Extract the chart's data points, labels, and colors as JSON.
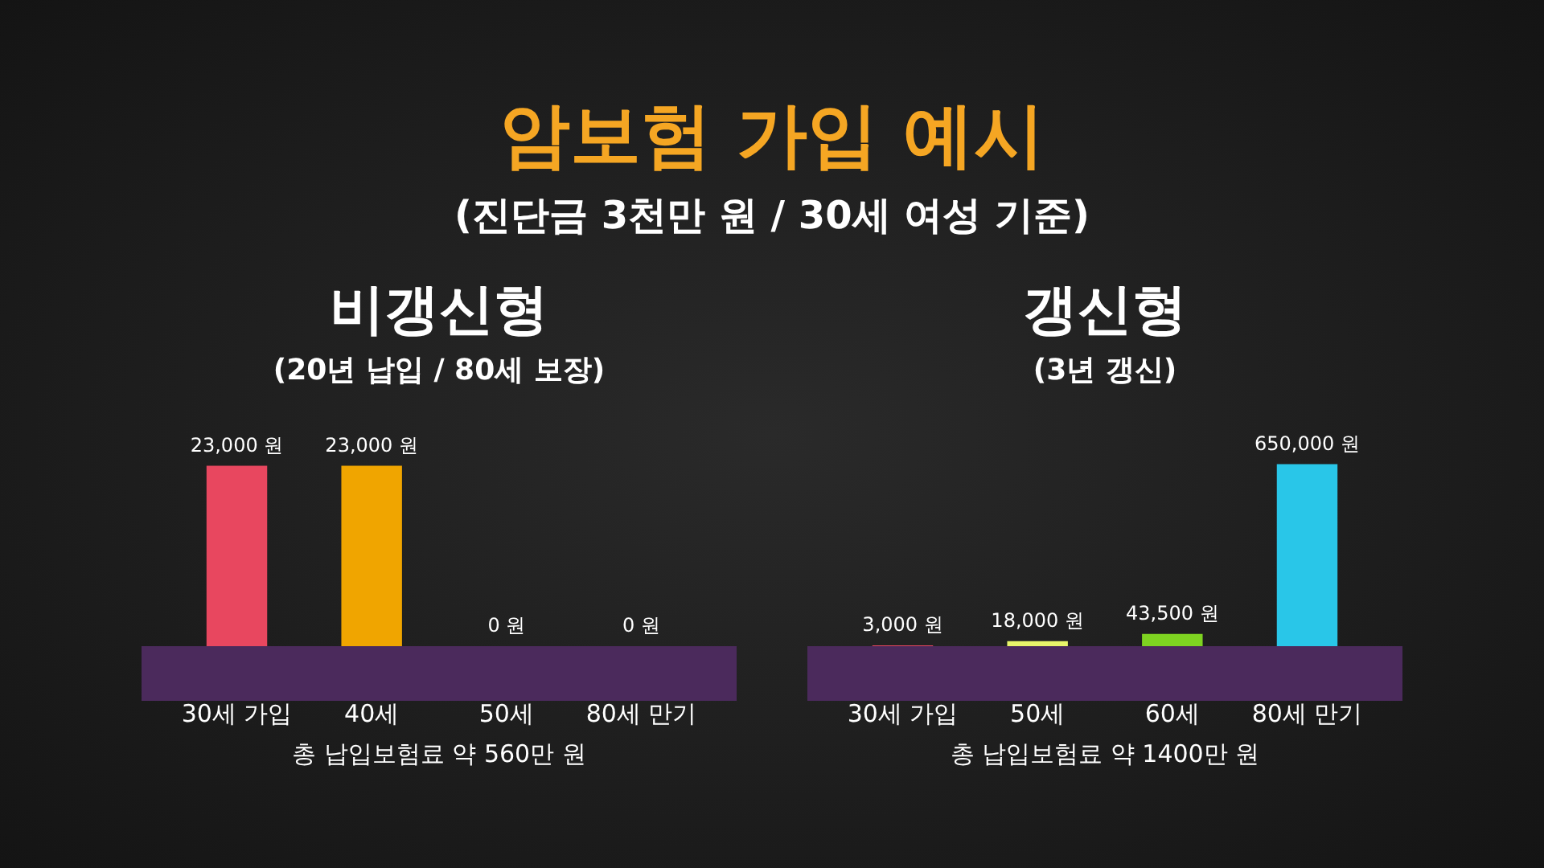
{
  "chart_data": [
    {
      "type": "other",
      "title": "암보험 가입 예시",
      "subtitle": "(진단금 3천만 원 / 30세 여성 기준)"
    },
    {
      "type": "bar",
      "title": "비갱신형",
      "subtitle": "(20년 납입 / 80세 보장)",
      "categories": [
        "30세 가입",
        "40세",
        "50세",
        "80세 만기"
      ],
      "values": [
        23000,
        23000,
        0,
        0
      ],
      "colors": [
        "#e8475f",
        "#f0a500",
        "#e8475f",
        "#f0a500"
      ],
      "value_labels": [
        "23,000 원",
        "23,000 원",
        "0 원",
        "0 원"
      ],
      "annotations": [
        "총 납입보험료 약 560만 원"
      ]
    },
    {
      "type": "bar",
      "title": "갱신형",
      "subtitle": "(3년 갱신)",
      "categories": [
        "30세 가입",
        "50세",
        "60세",
        "80세 만기"
      ],
      "values": [
        3000,
        18000,
        43500,
        650000
      ],
      "colors": [
        "#e8475f",
        "#e8f56a",
        "#7ed321",
        "#29c6e8"
      ],
      "value_labels": [
        "3,000 원",
        "18,000 원",
        "43,500 원",
        "650,000 원"
      ],
      "annotations": [
        "총 납입보험료 약 1400만 원"
      ]
    }
  ]
}
